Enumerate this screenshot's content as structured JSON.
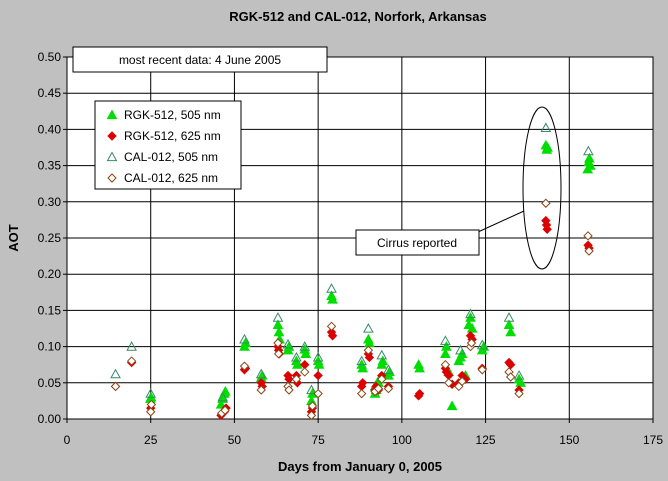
{
  "chart_data": {
    "type": "scatter",
    "title": "RGK-512 and CAL-012, Norfork, Arkansas",
    "xlabel": "Days from January 0, 2005",
    "ylabel": "AOT",
    "xlim": [
      0,
      175
    ],
    "ylim": [
      0,
      0.5
    ],
    "x_ticks": [
      0,
      25,
      50,
      75,
      100,
      125,
      150,
      175
    ],
    "y_ticks": [
      0.0,
      0.05,
      0.1,
      0.15,
      0.2,
      0.25,
      0.3,
      0.35,
      0.4,
      0.45,
      0.5
    ],
    "x_tick_labels": [
      "0",
      "25",
      "50",
      "75",
      "100",
      "125",
      "150",
      "175"
    ],
    "y_tick_labels": [
      "0.00",
      "0.05",
      "0.10",
      "0.15",
      "0.20",
      "0.25",
      "0.30",
      "0.35",
      "0.40",
      "0.45",
      "0.50"
    ],
    "grid": true,
    "legend_position": "upper-left",
    "note": "most recent data: 4 June 2005",
    "annotation": "Cirrus reported",
    "colors": {
      "background": "#c0c0c0",
      "plot_area": "#ffffff",
      "green": "#00dd00",
      "red": "#dd0000",
      "cal505_edge": "#3a8a6a",
      "cal625_edge": "#8b4513"
    },
    "series": [
      {
        "name": "RGK-512, 505 nm",
        "marker": "triangle-filled",
        "color": "#00dd00",
        "points": [
          [
            24.9,
            0.028
          ],
          [
            25.1,
            0.03
          ],
          [
            46,
            0.02
          ],
          [
            46.5,
            0.028
          ],
          [
            47,
            0.035
          ],
          [
            47.3,
            0.038
          ],
          [
            53,
            0.1
          ],
          [
            53.3,
            0.105
          ],
          [
            58,
            0.057
          ],
          [
            58.3,
            0.06
          ],
          [
            63,
            0.13
          ],
          [
            63.3,
            0.12
          ],
          [
            63.5,
            0.11
          ],
          [
            66,
            0.095
          ],
          [
            66.3,
            0.1
          ],
          [
            68.5,
            0.08
          ],
          [
            68.8,
            0.075
          ],
          [
            71,
            0.096
          ],
          [
            71.3,
            0.09
          ],
          [
            73,
            0.025
          ],
          [
            73.3,
            0.035
          ],
          [
            75,
            0.08
          ],
          [
            75.3,
            0.075
          ],
          [
            79,
            0.17
          ],
          [
            79.3,
            0.165
          ],
          [
            88,
            0.075
          ],
          [
            88.3,
            0.07
          ],
          [
            90,
            0.11
          ],
          [
            90.3,
            0.105
          ],
          [
            92,
            0.035
          ],
          [
            92.3,
            0.04
          ],
          [
            93,
            0.05
          ],
          [
            93.3,
            0.055
          ],
          [
            94,
            0.075
          ],
          [
            94.3,
            0.08
          ],
          [
            96,
            0.06
          ],
          [
            96.3,
            0.065
          ],
          [
            105,
            0.075
          ],
          [
            105.3,
            0.07
          ],
          [
            113,
            0.09
          ],
          [
            113.3,
            0.1
          ],
          [
            114,
            0.065
          ],
          [
            115,
            0.018
          ],
          [
            117,
            0.08
          ],
          [
            117.5,
            0.085
          ],
          [
            118,
            0.09
          ],
          [
            119,
            0.06
          ],
          [
            120,
            0.13
          ],
          [
            120.5,
            0.14
          ],
          [
            121,
            0.125
          ],
          [
            124,
            0.095
          ],
          [
            124.5,
            0.1
          ],
          [
            132,
            0.13
          ],
          [
            132.5,
            0.12
          ],
          [
            135,
            0.055
          ],
          [
            135.5,
            0.05
          ],
          [
            143,
            0.378
          ],
          [
            143.3,
            0.372
          ],
          [
            143.5,
            0.375
          ],
          [
            155.5,
            0.345
          ],
          [
            155.8,
            0.355
          ],
          [
            156,
            0.36
          ],
          [
            156.3,
            0.35
          ]
        ]
      },
      {
        "name": "RGK-512, 625 nm",
        "marker": "diamond-filled",
        "color": "#dd0000",
        "points": [
          [
            14.5,
            0.045
          ],
          [
            19.3,
            0.078
          ],
          [
            25,
            0.015
          ],
          [
            46,
            0.005
          ],
          [
            46.5,
            0.008
          ],
          [
            47,
            0.01
          ],
          [
            47.5,
            0.015
          ],
          [
            53,
            0.068
          ],
          [
            53.3,
            0.07
          ],
          [
            58,
            0.05
          ],
          [
            58.3,
            0.045
          ],
          [
            63,
            0.1
          ],
          [
            63.2,
            0.095
          ],
          [
            63.4,
            0.09
          ],
          [
            66,
            0.06
          ],
          [
            66.3,
            0.055
          ],
          [
            68.5,
            0.06
          ],
          [
            68.8,
            0.05
          ],
          [
            71,
            0.075
          ],
          [
            73,
            0.01
          ],
          [
            73.3,
            0.015
          ],
          [
            75,
            0.06
          ],
          [
            79,
            0.12
          ],
          [
            79.3,
            0.115
          ],
          [
            88,
            0.045
          ],
          [
            88.3,
            0.05
          ],
          [
            90,
            0.09
          ],
          [
            90.3,
            0.085
          ],
          [
            92,
            0.04
          ],
          [
            92.3,
            0.045
          ],
          [
            93,
            0.04
          ],
          [
            94,
            0.06
          ],
          [
            96,
            0.045
          ],
          [
            105,
            0.032
          ],
          [
            105.3,
            0.035
          ],
          [
            113,
            0.07
          ],
          [
            113.3,
            0.065
          ],
          [
            114,
            0.06
          ],
          [
            115,
            0.048
          ],
          [
            117,
            0.05
          ],
          [
            118,
            0.06
          ],
          [
            119,
            0.055
          ],
          [
            120.5,
            0.115
          ],
          [
            121,
            0.11
          ],
          [
            124,
            0.07
          ],
          [
            132,
            0.078
          ],
          [
            132.5,
            0.075
          ],
          [
            135,
            0.04
          ],
          [
            143,
            0.274
          ],
          [
            143.2,
            0.268
          ],
          [
            143.4,
            0.262
          ],
          [
            155.6,
            0.24
          ],
          [
            155.9,
            0.236
          ]
        ]
      },
      {
        "name": "CAL-012, 505 nm",
        "marker": "triangle-open",
        "color": "#3a8a6a",
        "points": [
          [
            14.5,
            0.062
          ],
          [
            19.3,
            0.1
          ],
          [
            25,
            0.035
          ],
          [
            46.5,
            0.03
          ],
          [
            53,
            0.11
          ],
          [
            58,
            0.062
          ],
          [
            63,
            0.14
          ],
          [
            66,
            0.103
          ],
          [
            68.5,
            0.085
          ],
          [
            71,
            0.1
          ],
          [
            73,
            0.04
          ],
          [
            75,
            0.085
          ],
          [
            79,
            0.18
          ],
          [
            88,
            0.08
          ],
          [
            90,
            0.125
          ],
          [
            92,
            0.045
          ],
          [
            94,
            0.088
          ],
          [
            96,
            0.068
          ],
          [
            113,
            0.108
          ],
          [
            117.5,
            0.095
          ],
          [
            120.5,
            0.145
          ],
          [
            124,
            0.102
          ],
          [
            132,
            0.14
          ],
          [
            135,
            0.06
          ],
          [
            143,
            0.402
          ],
          [
            155.7,
            0.37
          ]
        ]
      },
      {
        "name": "CAL-012, 625 nm",
        "marker": "diamond-open",
        "color": "#8b4513",
        "points": [
          [
            14.5,
            0.045
          ],
          [
            19.3,
            0.08
          ],
          [
            25,
            0.01
          ],
          [
            25.2,
            0.02
          ],
          [
            46.2,
            0.008
          ],
          [
            47.2,
            0.012
          ],
          [
            53,
            0.073
          ],
          [
            58,
            0.04
          ],
          [
            63,
            0.105
          ],
          [
            63.2,
            0.09
          ],
          [
            66,
            0.045
          ],
          [
            66.3,
            0.04
          ],
          [
            68.5,
            0.055
          ],
          [
            71,
            0.065
          ],
          [
            73,
            0.005
          ],
          [
            73.3,
            0.018
          ],
          [
            75,
            0.035
          ],
          [
            79,
            0.128
          ],
          [
            88,
            0.035
          ],
          [
            90,
            0.095
          ],
          [
            92,
            0.038
          ],
          [
            93,
            0.042
          ],
          [
            94,
            0.055
          ],
          [
            96,
            0.042
          ],
          [
            113,
            0.075
          ],
          [
            114,
            0.05
          ],
          [
            117,
            0.045
          ],
          [
            118,
            0.052
          ],
          [
            120.5,
            0.1
          ],
          [
            120.8,
            0.105
          ],
          [
            124,
            0.068
          ],
          [
            132,
            0.065
          ],
          [
            132.5,
            0.058
          ],
          [
            135,
            0.035
          ],
          [
            143,
            0.298
          ],
          [
            155.6,
            0.253
          ],
          [
            155.9,
            0.232
          ]
        ]
      }
    ]
  }
}
